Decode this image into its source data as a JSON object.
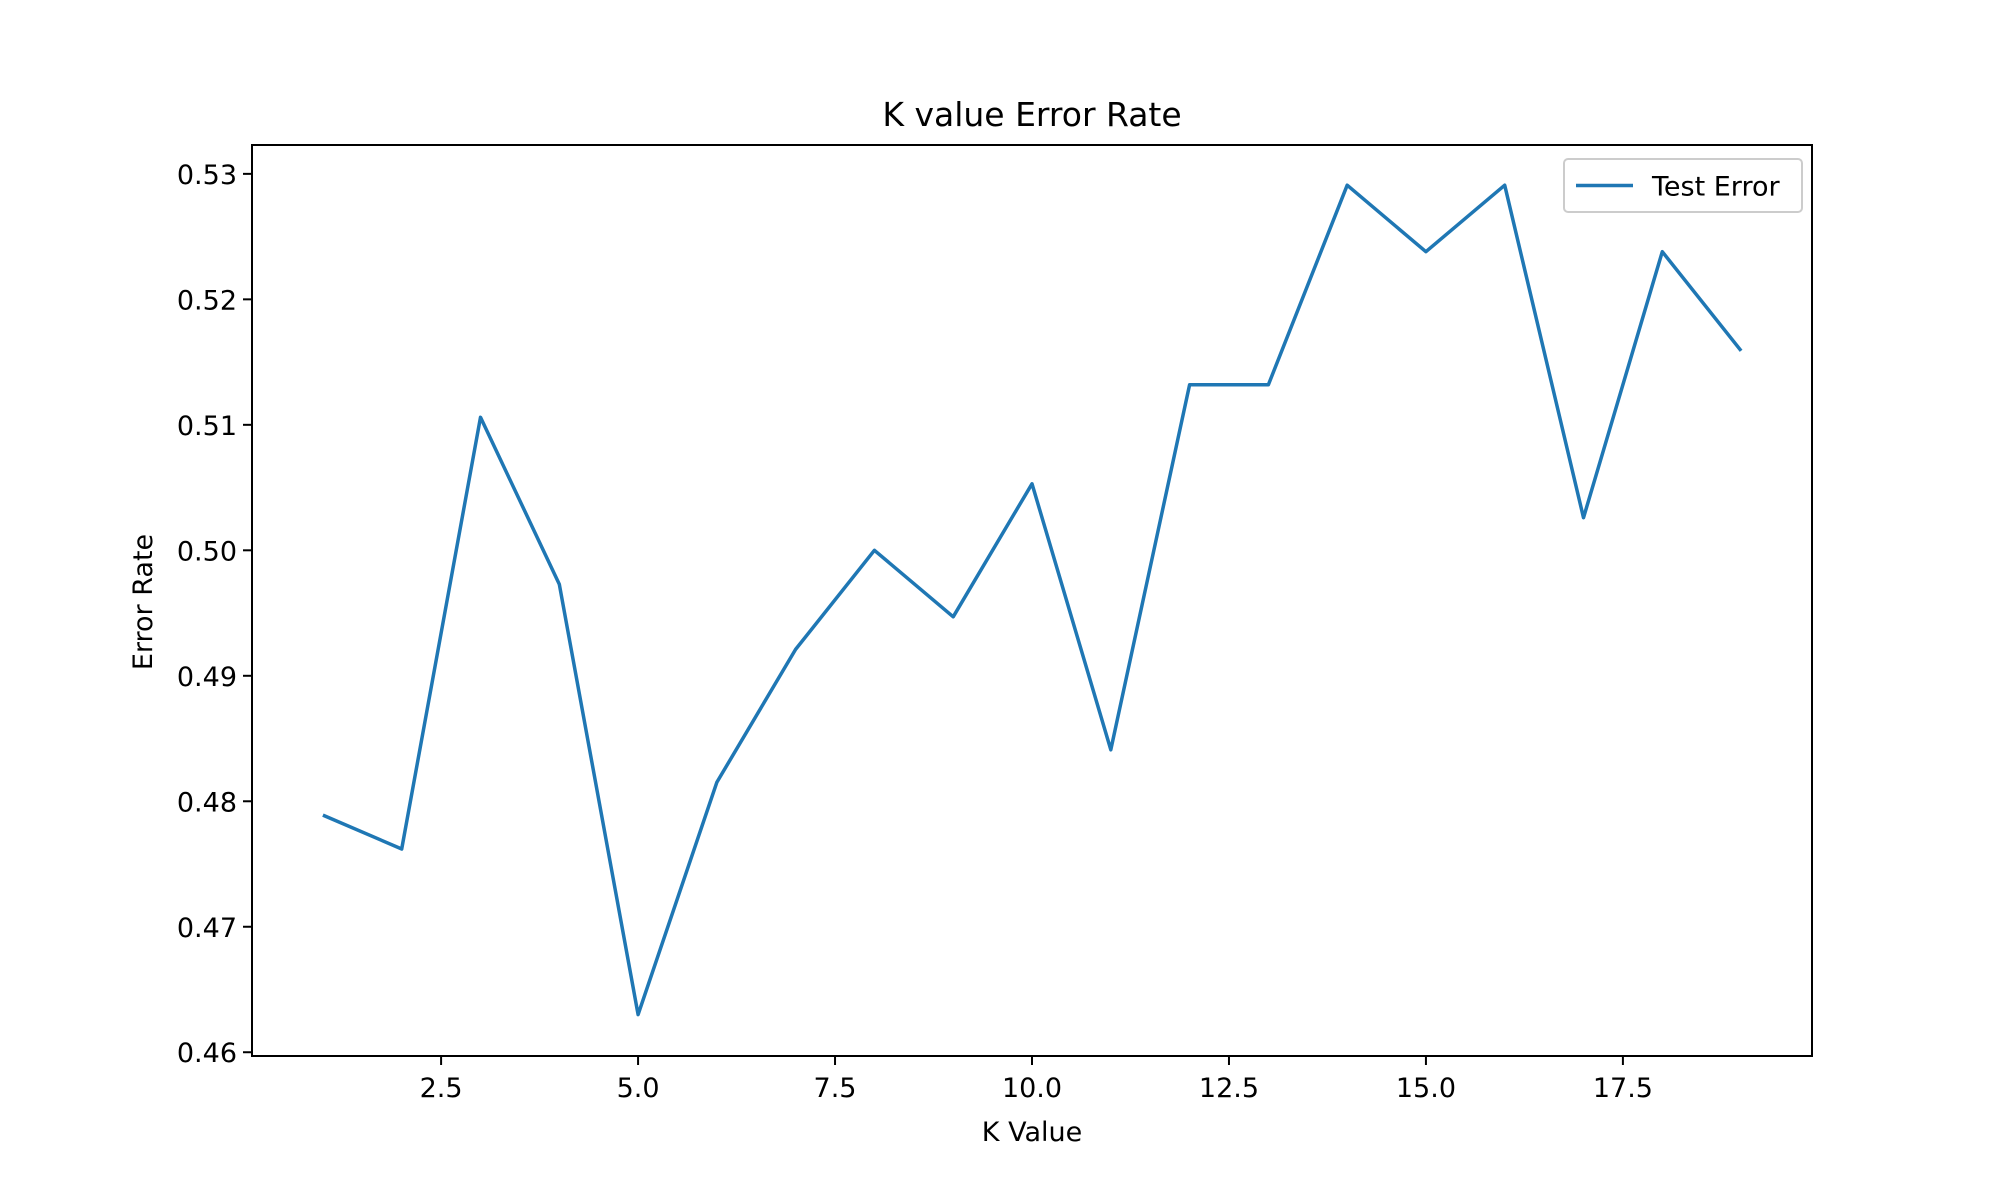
{
  "chart_data": {
    "type": "line",
    "title": "K value Error Rate",
    "xlabel": "K Value",
    "ylabel": "Error Rate",
    "xlim": [
      0.1,
      19.9
    ],
    "ylim": [
      0.4597,
      0.5323
    ],
    "xticks": [
      2.5,
      5.0,
      7.5,
      10.0,
      12.5,
      15.0,
      17.5
    ],
    "xtick_labels": [
      "2.5",
      "5.0",
      "7.5",
      "10.0",
      "12.5",
      "15.0",
      "17.5"
    ],
    "yticks": [
      0.46,
      0.47,
      0.48,
      0.49,
      0.5,
      0.51,
      0.52,
      0.53
    ],
    "ytick_labels": [
      "0.46",
      "0.47",
      "0.48",
      "0.49",
      "0.50",
      "0.51",
      "0.52",
      "0.53"
    ],
    "grid": false,
    "legend_position": "top-right",
    "series": [
      {
        "name": "Test Error",
        "color": "#1f77b4",
        "x": [
          1,
          2,
          3,
          4,
          5,
          6,
          7,
          8,
          9,
          10,
          11,
          12,
          13,
          14,
          15,
          16,
          17,
          18,
          19
        ],
        "y": [
          0.4789,
          0.4762,
          0.5106,
          0.4973,
          0.463,
          0.4815,
          0.4921,
          0.5,
          0.4947,
          0.5053,
          0.4841,
          0.5132,
          0.5132,
          0.5291,
          0.5238,
          0.5291,
          0.5026,
          0.5238,
          0.5159
        ]
      }
    ]
  }
}
